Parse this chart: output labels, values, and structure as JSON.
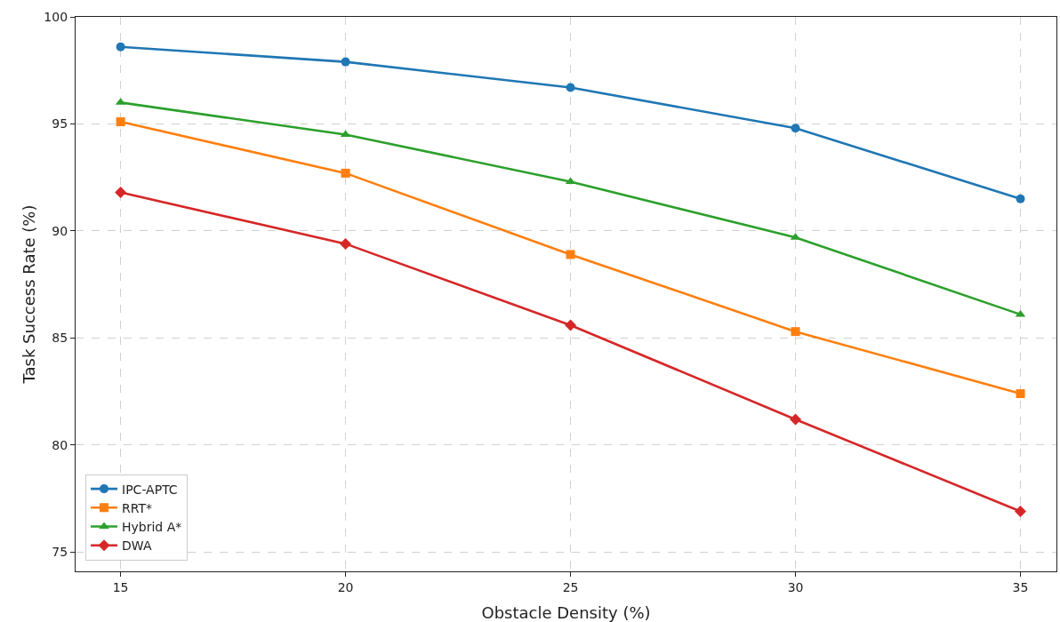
{
  "chart_data": {
    "type": "line",
    "xlabel": "Obstacle Density (%)",
    "ylabel": "Task Success Rate (%)",
    "x": [
      15,
      20,
      25,
      30,
      35
    ],
    "series": [
      {
        "name": "IPC-APTC",
        "color": "#1f77b4",
        "marker": "circle",
        "values": [
          98.6,
          97.9,
          96.7,
          94.8,
          91.5
        ]
      },
      {
        "name": "RRT*",
        "color": "#ff7f0e",
        "marker": "square",
        "values": [
          95.1,
          92.7,
          88.9,
          85.3,
          82.4
        ]
      },
      {
        "name": "Hybrid A*",
        "color": "#2ca02c",
        "marker": "triangle",
        "values": [
          96.0,
          94.5,
          92.3,
          89.7,
          86.1
        ]
      },
      {
        "name": "DWA",
        "color": "#d62728",
        "marker": "diamond",
        "values": [
          91.8,
          89.4,
          85.6,
          81.2,
          76.9
        ]
      }
    ],
    "xlim": [
      14,
      35.8
    ],
    "xticks": [
      15,
      20,
      25,
      30,
      35
    ],
    "ylim": [
      74.1,
      100
    ],
    "yticks": [
      75,
      80,
      85,
      90,
      95,
      100
    ],
    "grid": true,
    "legend": "bottom left",
    "line_style": "solid"
  }
}
